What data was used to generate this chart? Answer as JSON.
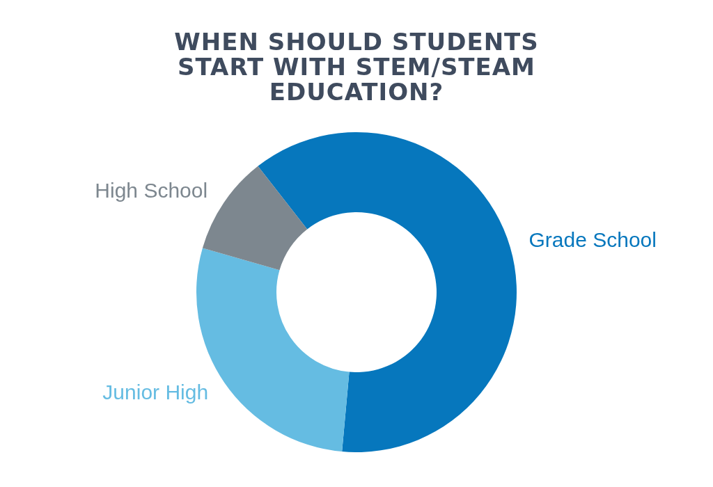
{
  "chart_data": {
    "type": "donut",
    "title": "WHEN SHOULD STUDENTS START WITH STEM/STEAM EDUCATION?",
    "categories": [
      "Grade School",
      "Junior High",
      "High School"
    ],
    "values": [
      62,
      28,
      10
    ],
    "colors": [
      "#0677bd",
      "#65bce2",
      "#7d878f"
    ],
    "legend": false
  }
}
